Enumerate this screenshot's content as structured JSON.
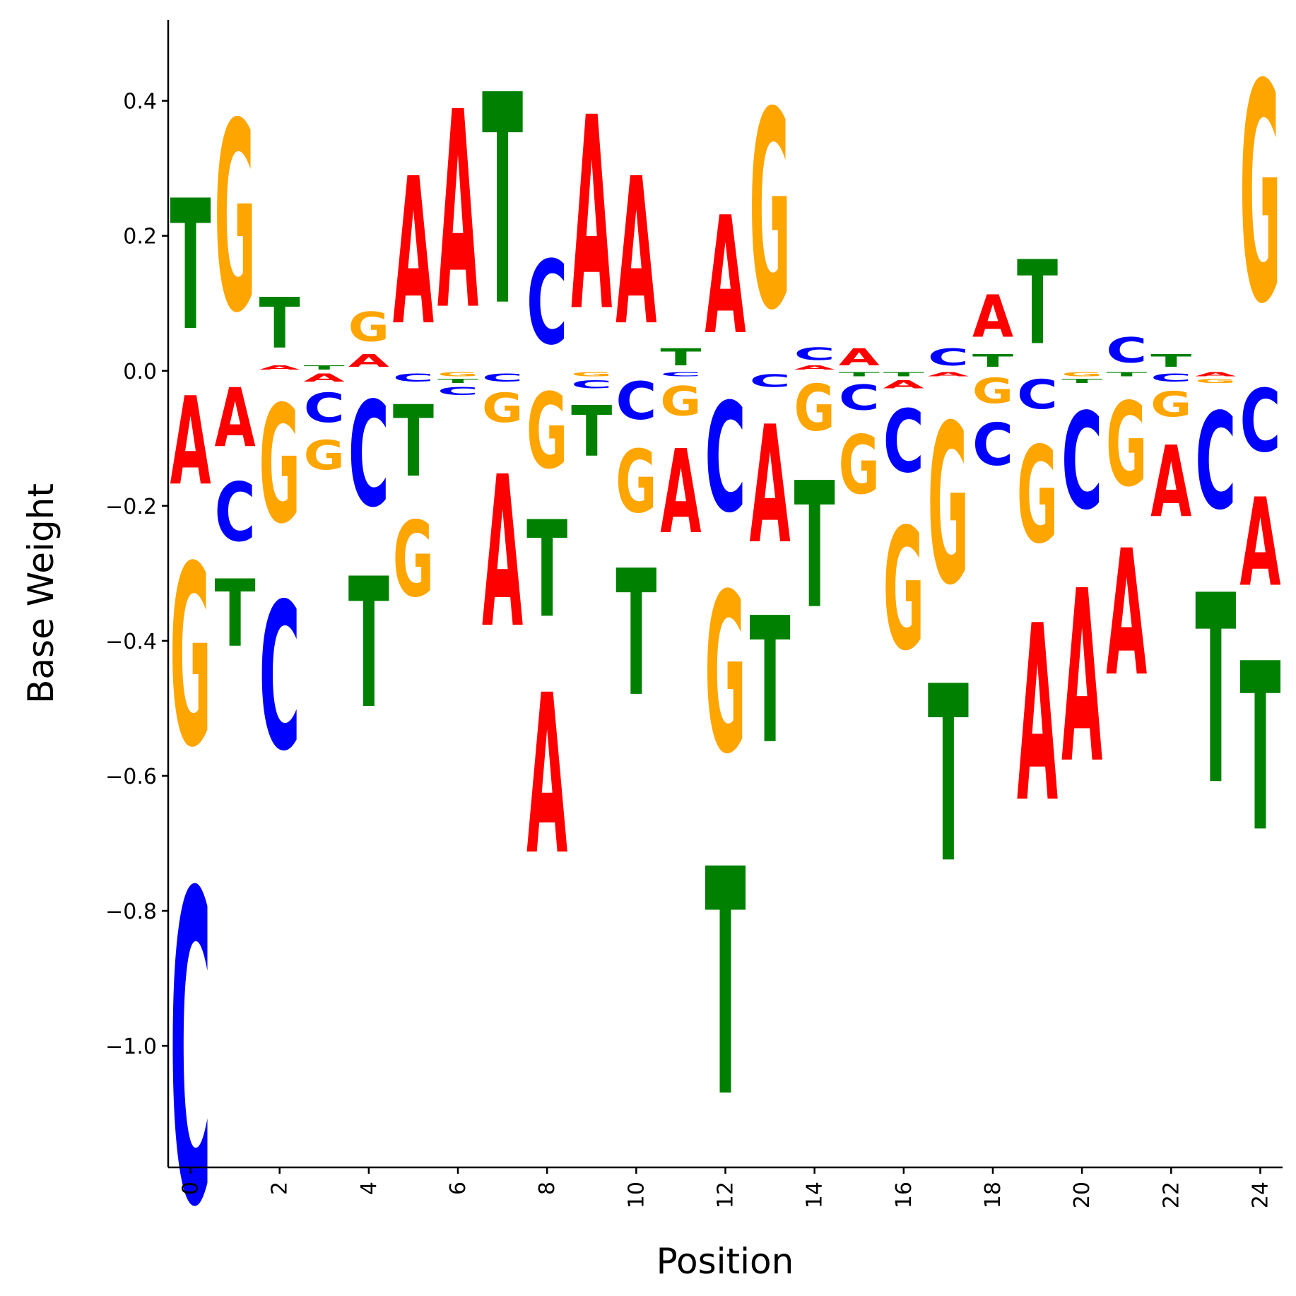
{
  "chart_data": {
    "type": "sequence-logo",
    "xlabel": "Position",
    "ylabel": "Base Weight",
    "xticks": [
      "0",
      "2",
      "4",
      "6",
      "8",
      "10",
      "12",
      "14",
      "16",
      "18",
      "20",
      "22",
      "24"
    ],
    "yticks": [
      "0.4",
      "0.2",
      "0.0",
      "−0.2",
      "−0.4",
      "−0.6",
      "−0.8",
      "−1.0"
    ],
    "xlim": [
      -0.5,
      24.5
    ],
    "ylim": [
      -1.18,
      0.52
    ],
    "grid": false,
    "legend": "none",
    "colors": {
      "A": "#ff0000",
      "C": "#0000ff",
      "G": "#ffa500",
      "T": "#008000"
    },
    "positions": [
      {
        "pos": 0,
        "A": -0.21,
        "C": -0.74,
        "G": -0.43,
        "T": 0.31
      },
      {
        "pos": 1,
        "A": -0.14,
        "C": -0.14,
        "G": 0.45,
        "T": -0.16
      },
      {
        "pos": 2,
        "A": 0.01,
        "C": -0.35,
        "G": -0.28,
        "T": 0.12
      },
      {
        "pos": 3,
        "A": -0.02,
        "C": -0.07,
        "G": -0.07,
        "T": 0.01
      },
      {
        "pos": 4,
        "A": 0.03,
        "C": -0.25,
        "G": 0.07,
        "T": -0.31
      },
      {
        "pos": 5,
        "A": 0.35,
        "C": -0.02,
        "G": -0.18,
        "T": -0.17
      },
      {
        "pos": 6,
        "A": 0.47,
        "C": -0.02,
        "G": -0.01,
        "T": -0.01
      },
      {
        "pos": 7,
        "A": -0.36,
        "C": -0.02,
        "G": -0.07,
        "T": 0.5
      },
      {
        "pos": 8,
        "A": -0.38,
        "C": 0.2,
        "G": -0.18,
        "T": -0.23
      },
      {
        "pos": 9,
        "A": 0.46,
        "C": -0.02,
        "G": -0.01,
        "T": -0.12
      },
      {
        "pos": 10,
        "A": 0.35,
        "C": -0.09,
        "G": -0.15,
        "T": -0.3
      },
      {
        "pos": 11,
        "A": -0.2,
        "C": -0.01,
        "G": -0.07,
        "T": 0.04
      },
      {
        "pos": 12,
        "A": 0.28,
        "C": -0.26,
        "G": -0.38,
        "T": -0.54
      },
      {
        "pos": 13,
        "A": -0.28,
        "C": -0.03,
        "G": 0.47,
        "T": -0.3
      },
      {
        "pos": 14,
        "A": 0.01,
        "C": 0.03,
        "G": -0.11,
        "T": -0.3
      },
      {
        "pos": 15,
        "A": 0.04,
        "C": -0.06,
        "G": -0.14,
        "T": -0.01
      },
      {
        "pos": 16,
        "A": -0.02,
        "C": -0.15,
        "G": -0.29,
        "T": -0.01
      },
      {
        "pos": 17,
        "A": -0.01,
        "C": 0.04,
        "G": -0.38,
        "T": -0.42
      },
      {
        "pos": 18,
        "A": 0.1,
        "C": -0.1,
        "G": -0.06,
        "T": 0.03
      },
      {
        "pos": 19,
        "A": -0.42,
        "C": -0.07,
        "G": -0.23,
        "T": 0.2
      },
      {
        "pos": 20,
        "A": -0.41,
        "C": -0.23,
        "G": -0.01,
        "T": -0.01
      },
      {
        "pos": 21,
        "A": -0.3,
        "C": 0.06,
        "G": -0.2,
        "T": -0.01
      },
      {
        "pos": 22,
        "A": -0.17,
        "C": -0.02,
        "G": -0.06,
        "T": 0.03
      },
      {
        "pos": 23,
        "A": -0.01,
        "C": -0.23,
        "G": -0.01,
        "T": -0.45
      },
      {
        "pos": 24,
        "A": -0.21,
        "C": -0.15,
        "G": 0.52,
        "T": -0.4
      }
    ]
  }
}
